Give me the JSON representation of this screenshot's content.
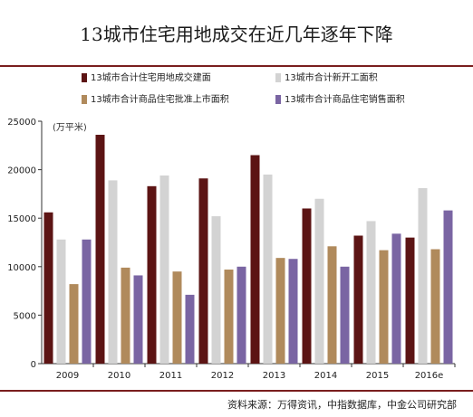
{
  "title": "13城市住宅用地成交在近几年逐年下降",
  "unit_label": "(万平米)",
  "source": "资料来源：万得资讯，中指数据库，中金公司研究部",
  "colors": {
    "series1": "#5c1414",
    "series2": "#d3d3d3",
    "series3": "#b08a5c",
    "series4": "#7a65a3",
    "rule": "#7a1e1e"
  },
  "chart_data": {
    "type": "bar",
    "categories": [
      "2009",
      "2010",
      "2011",
      "2012",
      "2013",
      "2014",
      "2015",
      "2016e"
    ],
    "series": [
      {
        "name": "13城市合计住宅用地成交建面",
        "values": [
          15600,
          23600,
          18300,
          19100,
          21500,
          16000,
          13200,
          13000
        ]
      },
      {
        "name": "13城市合计新开工面积",
        "values": [
          12800,
          18900,
          19400,
          15200,
          19500,
          17000,
          14700,
          18100
        ]
      },
      {
        "name": "13城市合计商品住宅批准上市面积",
        "values": [
          8200,
          9900,
          9500,
          9700,
          10900,
          12100,
          11700,
          11800
        ]
      },
      {
        "name": "13城市合计商品住宅销售面积",
        "values": [
          12800,
          9100,
          7100,
          10000,
          10800,
          10000,
          13400,
          15800
        ]
      }
    ],
    "ylim": [
      0,
      25000
    ],
    "yticks": [
      "0",
      "5000",
      "10000",
      "15000",
      "20000",
      "25000"
    ],
    "xlabel": "",
    "ylabel": "(万平米)",
    "legend_position": "top",
    "grid": false
  }
}
